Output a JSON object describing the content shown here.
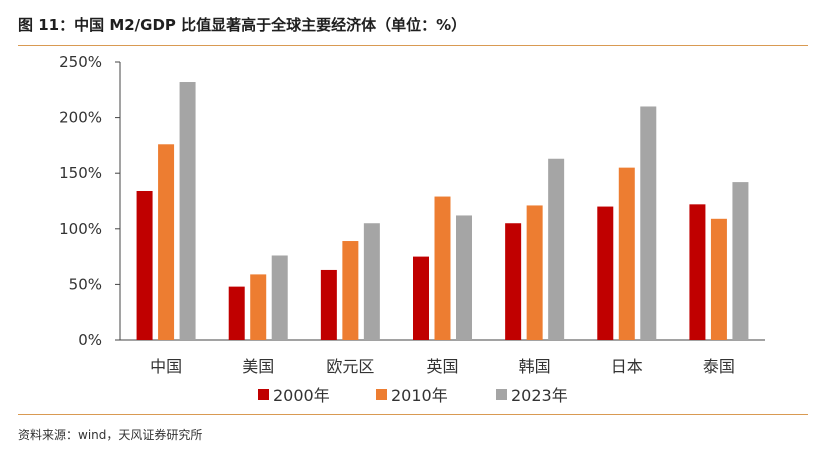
{
  "header": {
    "title": "图 11：中国 M2/GDP 比值显著高于全球主要经济体（单位：%）"
  },
  "footer": {
    "source": "资料来源：wind，天风证券研究所"
  },
  "chart_data": {
    "type": "bar",
    "title": "",
    "xlabel": "",
    "ylabel": "",
    "ylim": [
      0,
      250
    ],
    "yticks": [
      0,
      50,
      100,
      150,
      200,
      250
    ],
    "ytick_labels": [
      "0%",
      "50%",
      "100%",
      "150%",
      "200%",
      "250%"
    ],
    "categories": [
      "中国",
      "美国",
      "欧元区",
      "英国",
      "韩国",
      "日本",
      "泰国"
    ],
    "series": [
      {
        "name": "2000年",
        "color": "#c00000",
        "values": [
          134,
          48,
          63,
          75,
          105,
          120,
          122
        ]
      },
      {
        "name": "2010年",
        "color": "#ed7d31",
        "values": [
          176,
          59,
          89,
          129,
          121,
          155,
          109
        ]
      },
      {
        "name": "2023年",
        "color": "#a5a5a5",
        "values": [
          232,
          76,
          105,
          112,
          163,
          210,
          142
        ]
      }
    ],
    "grid": false,
    "legend_position": "bottom"
  }
}
